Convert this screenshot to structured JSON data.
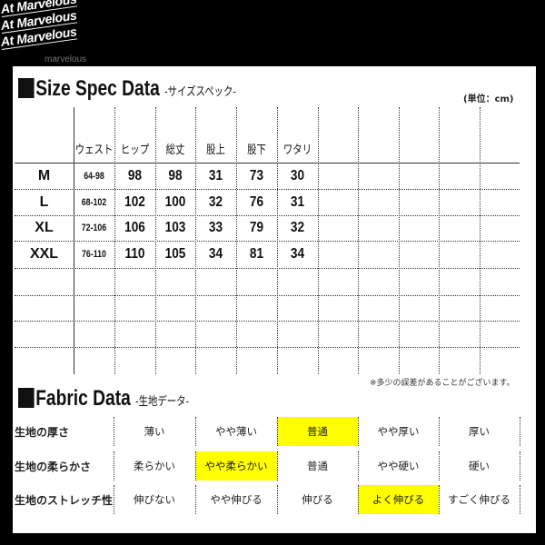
{
  "logo": {
    "lines": [
      "At Marvelous",
      "At Marvelous",
      "At Marvelous"
    ],
    "sub": "marvelous"
  },
  "size_spec": {
    "title": "Size Spec Data",
    "title_jp": "-サイズスペック-",
    "unit": "(単位：cm)",
    "headers": [
      "ウェスト",
      "ヒップ",
      "総丈",
      "股上",
      "股下",
      "ワタリ"
    ],
    "rows": [
      {
        "size": "M",
        "values": [
          "64-98",
          "98",
          "98",
          "31",
          "73",
          "30"
        ]
      },
      {
        "size": "L",
        "values": [
          "68-102",
          "102",
          "100",
          "32",
          "76",
          "31"
        ]
      },
      {
        "size": "XL",
        "values": [
          "72-106",
          "106",
          "103",
          "33",
          "79",
          "32"
        ]
      },
      {
        "size": "XXL",
        "values": [
          "76-110",
          "110",
          "105",
          "34",
          "81",
          "34"
        ]
      }
    ],
    "note": "※多少の誤差があることがございます。"
  },
  "fabric": {
    "title": "Fabric Data",
    "title_jp": "-生地データ-",
    "highlight_color": "#ffff00",
    "rows": [
      {
        "label": "生地の厚さ",
        "options": [
          "薄い",
          "やや薄い",
          "普通",
          "やや厚い",
          "厚い"
        ],
        "selected": 2
      },
      {
        "label": "生地の柔らかさ",
        "options": [
          "柔らかい",
          "やや柔らかい",
          "普通",
          "やや硬い",
          "硬い"
        ],
        "selected": 1
      },
      {
        "label": "生地のストレッチ性",
        "options": [
          "伸びない",
          "やや伸びる",
          "伸びる",
          "よく伸びる",
          "すごく伸びる"
        ],
        "selected": 3
      }
    ]
  }
}
